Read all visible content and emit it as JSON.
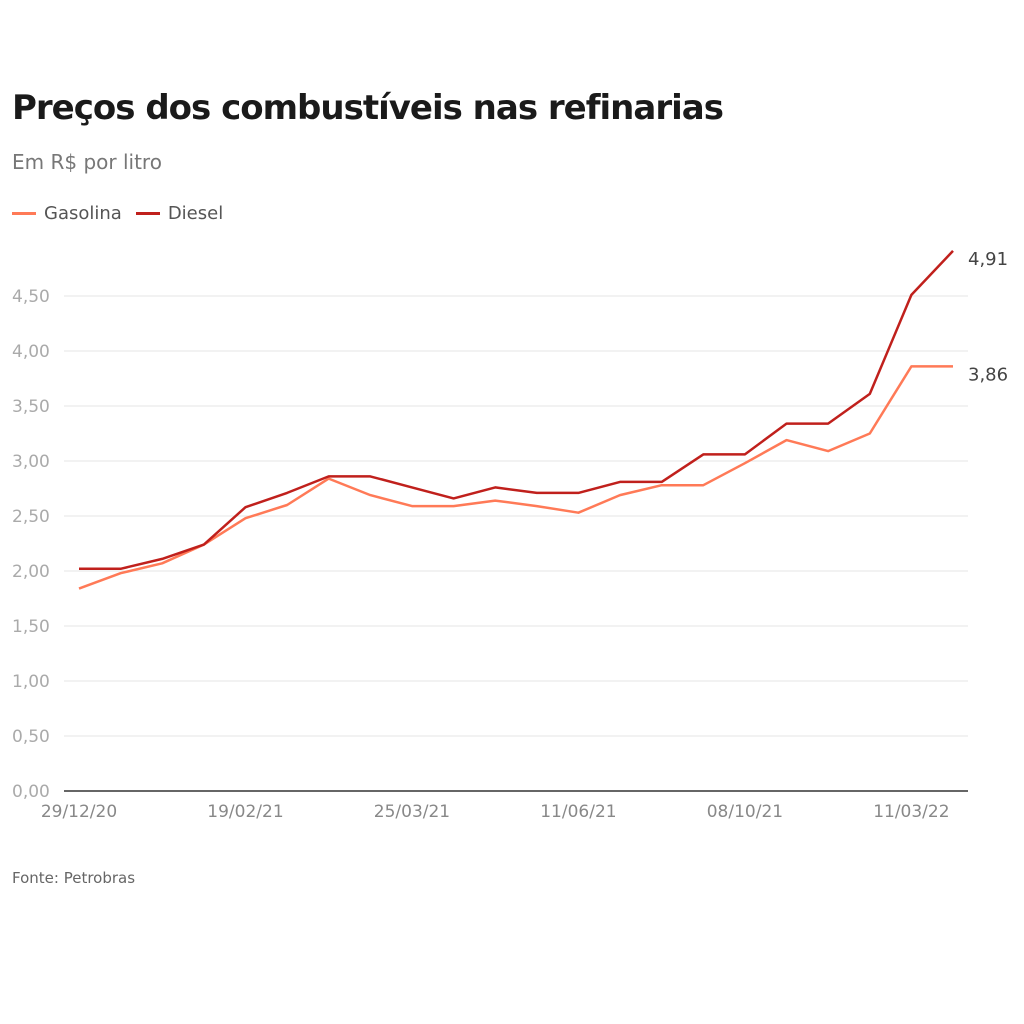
{
  "header": {
    "title": "Preços dos combustíveis nas refinarias",
    "subtitle": "Em R$ por litro"
  },
  "legend": [
    {
      "label": "Gasolina",
      "color": "#ff7a57"
    },
    {
      "label": "Diesel",
      "color": "#c0201c"
    }
  ],
  "source": "Fonte: Petrobras",
  "chart_data": {
    "type": "line",
    "title": "Preços dos combustíveis nas refinarias",
    "subtitle": "Em R$ por litro",
    "xlabel": "",
    "ylabel": "",
    "ylim": [
      0,
      4.5
    ],
    "yticks": [
      0,
      0.5,
      1,
      1.5,
      2,
      2.5,
      3,
      3.5,
      4,
      4.5
    ],
    "ytick_labels": [
      "0,00",
      "0,50",
      "1,00",
      "1,50",
      "2,00",
      "2,50",
      "3,00",
      "3,50",
      "4,00",
      "4,50"
    ],
    "grid": true,
    "legend_position": "top-left",
    "x_count": 22,
    "xtick_indices": [
      0,
      4,
      8,
      12,
      16,
      20
    ],
    "xtick_labels": [
      "29/12/20",
      "19/02/21",
      "25/03/21",
      "11/06/21",
      "08/10/21",
      "11/03/22"
    ],
    "series": [
      {
        "name": "Gasolina",
        "color": "#ff7a57",
        "values": [
          1.84,
          1.98,
          2.07,
          2.24,
          2.48,
          2.6,
          2.84,
          2.69,
          2.59,
          2.59,
          2.64,
          2.59,
          2.53,
          2.69,
          2.78,
          2.78,
          2.98,
          3.19,
          3.09,
          3.25,
          3.86,
          3.86
        ],
        "end_label": "3,86"
      },
      {
        "name": "Diesel",
        "color": "#c0201c",
        "values": [
          2.02,
          2.02,
          2.11,
          2.24,
          2.58,
          2.71,
          2.86,
          2.86,
          2.76,
          2.66,
          2.76,
          2.71,
          2.71,
          2.81,
          2.81,
          3.06,
          3.06,
          3.34,
          3.34,
          3.61,
          4.51,
          4.91
        ],
        "end_label": "4,91"
      }
    ]
  }
}
